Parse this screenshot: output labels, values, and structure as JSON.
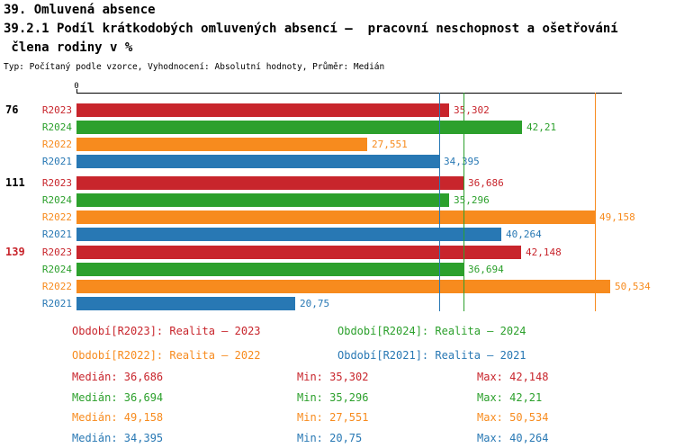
{
  "header": {
    "title": "39. Omluvená absence",
    "subtitle": "39.2.1 Podíl krátkodobých omluvených absencí –  pracovní neschopnost a ošetřování",
    "subtitle2": " člena rodiny v %",
    "meta": "Typ: Počítaný podle vzorce, Vyhodnocení: Absolutní hodnoty, Průměr: Medián"
  },
  "colors": {
    "R2023": "#c8252c",
    "R2024": "#2ca02c",
    "R2022": "#f78b1e",
    "R2021": "#2878b4",
    "axis": "#000000",
    "highlight_group": "#c8252c"
  },
  "chart_data": {
    "type": "bar",
    "orientation": "horizontal",
    "title": "39.2.1 Podíl krátkodobých omluvených absencí – pracovní neschopnost a ošetřování člena rodiny v %",
    "xlabel": "",
    "ylabel": "",
    "x_origin_label": "0",
    "xmax": 51.6,
    "grid": false,
    "series_order": [
      "R2023",
      "R2024",
      "R2022",
      "R2021"
    ],
    "groups": [
      {
        "label": "76",
        "highlight": false,
        "bars": [
          {
            "series": "R2023",
            "value": 35.302,
            "label": "35,302"
          },
          {
            "series": "R2024",
            "value": 42.21,
            "label": "42,21"
          },
          {
            "series": "R2022",
            "value": 27.551,
            "label": "27,551"
          },
          {
            "series": "R2021",
            "value": 34.395,
            "label": "34,395"
          }
        ]
      },
      {
        "label": "111",
        "highlight": false,
        "bars": [
          {
            "series": "R2023",
            "value": 36.686,
            "label": "36,686"
          },
          {
            "series": "R2024",
            "value": 35.296,
            "label": "35,296"
          },
          {
            "series": "R2022",
            "value": 49.158,
            "label": "49,158"
          },
          {
            "series": "R2021",
            "value": 40.264,
            "label": "40,264"
          }
        ]
      },
      {
        "label": "139",
        "highlight": true,
        "bars": [
          {
            "series": "R2023",
            "value": 42.148,
            "label": "42,148"
          },
          {
            "series": "R2024",
            "value": 36.694,
            "label": "36,694"
          },
          {
            "series": "R2022",
            "value": 50.534,
            "label": "50,534"
          },
          {
            "series": "R2021",
            "value": 20.75,
            "label": "20,75"
          }
        ]
      }
    ],
    "median_lines": [
      {
        "series": "R2023",
        "value": 36.686
      },
      {
        "series": "R2024",
        "value": 36.694
      },
      {
        "series": "R2022",
        "value": 49.158
      },
      {
        "series": "R2021",
        "value": 34.395
      }
    ]
  },
  "legend": [
    {
      "series": "R2023",
      "label": "Období[R2023]: Realita – 2023"
    },
    {
      "series": "R2024",
      "label": "Období[R2024]: Realita – 2024"
    },
    {
      "series": "R2022",
      "label": "Období[R2022]: Realita – 2022"
    },
    {
      "series": "R2021",
      "label": "Období[R2021]: Realita – 2021"
    }
  ],
  "stats": [
    {
      "series": "R2023",
      "median": "Medián: 36,686",
      "min": "Min: 35,302",
      "max": "Max: 42,148"
    },
    {
      "series": "R2024",
      "median": "Medián: 36,694",
      "min": "Min: 35,296",
      "max": "Max: 42,21"
    },
    {
      "series": "R2022",
      "median": "Medián: 49,158",
      "min": "Min: 27,551",
      "max": "Max: 50,534"
    },
    {
      "series": "R2021",
      "median": "Medián: 34,395",
      "min": "Min: 20,75",
      "max": "Max: 40,264"
    }
  ]
}
